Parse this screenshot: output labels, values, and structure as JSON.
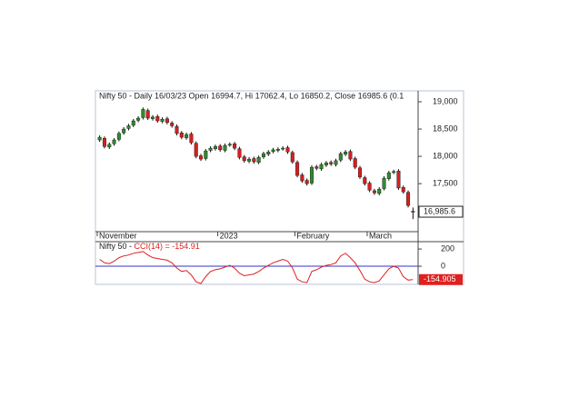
{
  "chart_data": [
    {
      "type": "candlestick",
      "title": "Nifty 50 - Daily 16/03/23 Open 16994.7, Hi 17062.4, Lo 16850.2, Close 16985.6 (0.1",
      "categories": [
        "November",
        null,
        null,
        null,
        null,
        null,
        null,
        null,
        null,
        null,
        null,
        null,
        null,
        null,
        null,
        null,
        null,
        null,
        null,
        null,
        null,
        null,
        null,
        null,
        null,
        "2023",
        null,
        null,
        null,
        null,
        null,
        null,
        null,
        null,
        null,
        null,
        null,
        null,
        null,
        null,
        null,
        "February",
        null,
        null,
        null,
        null,
        null,
        null,
        null,
        null,
        null,
        null,
        null,
        null,
        null,
        null,
        "March",
        null,
        null,
        null,
        null,
        null,
        null,
        null,
        null,
        null
      ],
      "open": [
        18300,
        18330,
        18170,
        18230,
        18310,
        18430,
        18510,
        18570,
        18660,
        18710,
        18840,
        18690,
        18730,
        18640,
        18690,
        18610,
        18550,
        18430,
        18340,
        18410,
        18240,
        18010,
        17960,
        18110,
        18140,
        18190,
        18110,
        18210,
        18230,
        18140,
        17990,
        17910,
        17960,
        17890,
        17990,
        18040,
        18090,
        18110,
        18140,
        18160,
        18070,
        17890,
        17660,
        17560,
        17510,
        17810,
        17770,
        17840,
        17890,
        17850,
        17930,
        18040,
        18090,
        17960,
        17790,
        17610,
        17510,
        17370,
        17320,
        17410,
        17590,
        17710,
        17730,
        17430,
        17340,
        16994.7
      ],
      "high": [
        18385,
        18365,
        18255,
        18335,
        18455,
        18535,
        18595,
        18685,
        18735,
        18895,
        18875,
        18755,
        18765,
        18715,
        18725,
        18645,
        18585,
        18465,
        18435,
        18445,
        18275,
        18045,
        18135,
        18185,
        18215,
        18225,
        18235,
        18255,
        18265,
        18175,
        18025,
        17985,
        17995,
        18015,
        18085,
        18115,
        18155,
        18165,
        18185,
        18195,
        18105,
        17925,
        17695,
        17595,
        17835,
        17845,
        17885,
        17915,
        17925,
        17955,
        18085,
        18115,
        18125,
        17995,
        17825,
        17645,
        17545,
        17405,
        17435,
        17635,
        17735,
        17755,
        17765,
        17465,
        17375,
        17062.4
      ],
      "low": [
        18265,
        18145,
        18135,
        18195,
        18275,
        18395,
        18475,
        18535,
        18625,
        18675,
        18665,
        18655,
        18615,
        18605,
        18585,
        18525,
        18385,
        18315,
        18305,
        18215,
        17965,
        17915,
        17925,
        18075,
        18105,
        18085,
        18075,
        18175,
        18115,
        17945,
        17885,
        17875,
        17865,
        17855,
        17955,
        18005,
        18055,
        18075,
        18105,
        18045,
        17865,
        17615,
        17515,
        17465,
        17475,
        17745,
        17735,
        17805,
        17825,
        17815,
        17895,
        18005,
        17915,
        17765,
        17585,
        17465,
        17345,
        17295,
        17285,
        17375,
        17555,
        17675,
        17385,
        17315,
        17065,
        16850.2
      ],
      "close": [
        18350,
        18180,
        18220,
        18300,
        18420,
        18500,
        18560,
        18650,
        18700,
        18860,
        18700,
        18720,
        18650,
        18680,
        18620,
        18560,
        18420,
        18350,
        18400,
        18250,
        18000,
        17950,
        18100,
        18150,
        18180,
        18120,
        18200,
        18220,
        18150,
        17980,
        17920,
        17950,
        17900,
        17980,
        18050,
        18080,
        18120,
        18130,
        18150,
        18080,
        17900,
        17650,
        17550,
        17500,
        17800,
        17780,
        17850,
        17880,
        17860,
        17920,
        18050,
        18080,
        17950,
        17800,
        17620,
        17500,
        17380,
        17330,
        17400,
        17600,
        17700,
        17720,
        17420,
        17350,
        17100,
        16985.6
      ],
      "up_color": "#2e8b2e",
      "down_color": "#d42020",
      "ylim": [
        16620,
        19200
      ],
      "yticks": [
        {
          "value": 17500,
          "label": "17,500"
        },
        {
          "value": 18000,
          "label": "18,000"
        },
        {
          "value": 18500,
          "label": "18,500"
        },
        {
          "value": 19000,
          "label": "19,000"
        }
      ],
      "last_label": {
        "value": 16985.6,
        "label": "16,985.6"
      }
    },
    {
      "type": "line",
      "title": "Nifty 50 - ",
      "series": [
        {
          "name": "CCI(14) = -154.91",
          "color": "#e02020",
          "values": [
            80,
            40,
            30,
            60,
            100,
            120,
            130,
            150,
            160,
            170,
            130,
            100,
            90,
            80,
            70,
            40,
            -20,
            -60,
            -50,
            -100,
            -180,
            -200,
            -120,
            -60,
            -40,
            -30,
            -10,
            10,
            -20,
            -80,
            -110,
            -100,
            -90,
            -60,
            -20,
            10,
            40,
            60,
            80,
            60,
            -20,
            -150,
            -180,
            -190,
            -60,
            -40,
            -10,
            10,
            20,
            40,
            120,
            150,
            100,
            40,
            -50,
            -150,
            -180,
            -190,
            -170,
            -100,
            -30,
            0,
            -20,
            -120,
            -160,
            -154.91
          ]
        }
      ],
      "ylim": [
        -210,
        285
      ],
      "yticks": [
        0,
        200
      ],
      "reference_line": 0,
      "reference_color": "#3030d0",
      "last_label": {
        "value": -154.905,
        "label": "-154.905"
      }
    }
  ]
}
